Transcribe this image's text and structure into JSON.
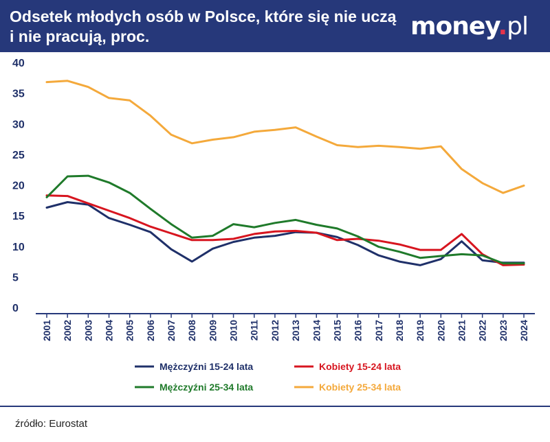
{
  "header": {
    "title_line1": "Odsetek młodych osób w Polsce, które się nie uczą",
    "title_line2": "i nie pracują, proc.",
    "logo_main": "money",
    "logo_dot": ".",
    "logo_suffix": "pl"
  },
  "footer": {
    "source": "źródło: Eurostat"
  },
  "colors": {
    "header_bg": "#26387a",
    "navy": "#1f3069",
    "red": "#d7151f",
    "green": "#1f7a2a",
    "orange": "#f4a93b"
  },
  "chart_data": {
    "type": "line",
    "x": [
      "2001",
      "2002",
      "2003",
      "2004",
      "2005",
      "2006",
      "2007",
      "2008",
      "2009",
      "2010",
      "2011",
      "2012",
      "2013",
      "2014",
      "2015",
      "2016",
      "2017",
      "2018",
      "2019",
      "2020",
      "2021",
      "2022",
      "2023",
      "2024"
    ],
    "ylim": [
      0,
      40
    ],
    "yticks": [
      0,
      5,
      10,
      15,
      20,
      25,
      30,
      35,
      40
    ],
    "grid": false,
    "legend_position": "bottom",
    "series": [
      {
        "name": "Mężczyźni 15-24 lata",
        "color": "#1f3069",
        "values": [
          16.3,
          17.2,
          16.8,
          14.6,
          13.5,
          12.3,
          9.5,
          7.5,
          9.6,
          10.7,
          11.4,
          11.7,
          12.3,
          12.2,
          11.5,
          10.2,
          8.5,
          7.5,
          6.9,
          7.9,
          10.8,
          7.7,
          7.3,
          7.3
        ]
      },
      {
        "name": "Kobiety 15-24 lata",
        "color": "#d7151f",
        "values": [
          18.3,
          18.2,
          17.0,
          15.8,
          14.6,
          13.2,
          12.1,
          11.0,
          11.0,
          11.2,
          12.0,
          12.4,
          12.5,
          12.2,
          11.0,
          11.2,
          10.9,
          10.3,
          9.4,
          9.4,
          12.0,
          8.7,
          6.9,
          7.0
        ]
      },
      {
        "name": "Mężczyźni 25-34 lata",
        "color": "#1f7a2a",
        "values": [
          18.0,
          21.4,
          21.5,
          20.4,
          18.7,
          16.1,
          13.6,
          11.4,
          11.7,
          13.6,
          13.1,
          13.8,
          14.3,
          13.5,
          12.9,
          11.6,
          9.9,
          9.1,
          8.1,
          8.4,
          8.7,
          8.5,
          7.2,
          7.2
        ]
      },
      {
        "name": "Kobiety 25-34 lata",
        "color": "#f4a93b",
        "values": [
          36.8,
          37.0,
          36.0,
          34.2,
          33.8,
          31.3,
          28.2,
          26.8,
          27.4,
          27.8,
          28.7,
          29.0,
          29.4,
          27.9,
          26.5,
          26.2,
          26.4,
          26.2,
          25.9,
          26.3,
          22.6,
          20.3,
          18.7,
          19.9
        ]
      }
    ]
  }
}
